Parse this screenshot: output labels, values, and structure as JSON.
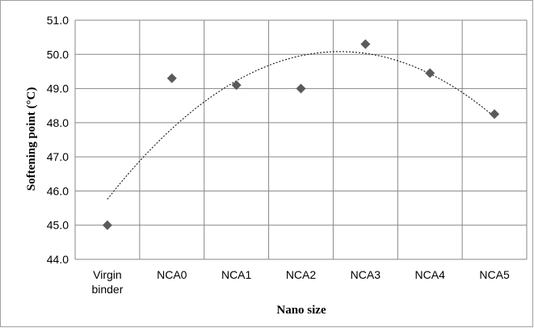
{
  "chart_data": {
    "type": "scatter",
    "categories": [
      [
        "Virgin",
        "binder"
      ],
      [
        "NCA0"
      ],
      [
        "NCA1"
      ],
      [
        "NCA2"
      ],
      [
        "NCA3"
      ],
      [
        "NCA4"
      ],
      [
        "NCA5"
      ]
    ],
    "series": [
      {
        "values": [
          45.0,
          49.3,
          49.1,
          49.0,
          50.3,
          49.45,
          48.25
        ]
      }
    ],
    "trendline": {
      "type": "polynomial",
      "style": "dotted",
      "color": "#000000"
    },
    "xlabel": "Nano size",
    "ylabel": "Softening point (°C)",
    "ylim": [
      44.0,
      51.0
    ],
    "yticks": [
      "44.0",
      "45.0",
      "46.0",
      "47.0",
      "48.0",
      "49.0",
      "50.0",
      "51.0"
    ],
    "grid": true,
    "legend": "none",
    "marker": "diamond",
    "colors": {
      "marker": "#5a5a5a",
      "grid": "#878787",
      "frame": "#878787"
    }
  }
}
